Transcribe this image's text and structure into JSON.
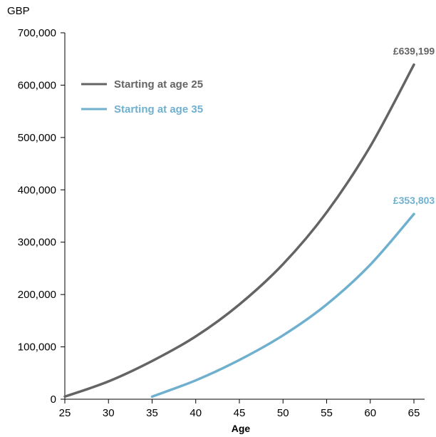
{
  "chart_data": {
    "type": "line",
    "title": "",
    "unit_label": "GBP",
    "xlabel": "Age",
    "ylabel": "",
    "xlim": [
      25,
      65
    ],
    "ylim": [
      0,
      700000
    ],
    "x_ticks": [
      "25",
      "30",
      "35",
      "40",
      "45",
      "50",
      "55",
      "60",
      "65"
    ],
    "y_ticks": [
      "0",
      "100,000",
      "200,000",
      "300,000",
      "400,000",
      "500,000",
      "600,000",
      "700,000"
    ],
    "grid": false,
    "legend_position": "top-left",
    "series": [
      {
        "name": "Starting at age 25",
        "color": "#646464",
        "x": [
          25,
          30,
          35,
          40,
          45,
          50,
          55,
          60,
          65
        ],
        "y": [
          5000,
          34000,
          73000,
          120000,
          181000,
          258000,
          357000,
          483000,
          639199
        ],
        "end_label": "£639,199"
      },
      {
        "name": "Starting at age 35",
        "color": "#6fb0cf",
        "x": [
          35,
          40,
          45,
          50,
          55,
          60,
          65
        ],
        "y": [
          5000,
          36000,
          75000,
          122000,
          181000,
          257000,
          353803
        ],
        "end_label": "£353,803"
      }
    ]
  }
}
